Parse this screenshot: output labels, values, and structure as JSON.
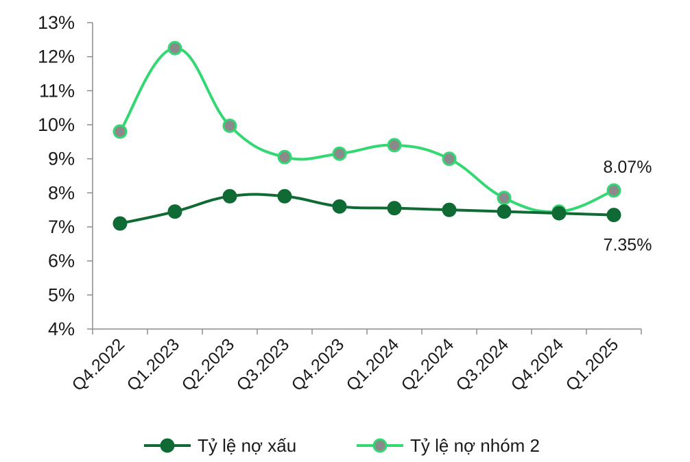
{
  "chart_data": {
    "type": "line",
    "categories": [
      "Q4.2022",
      "Q1.2023",
      "Q2.2023",
      "Q3.2023",
      "Q4.2023",
      "Q1.2024",
      "Q2.2024",
      "Q3.2024",
      "Q4.2024",
      "Q1.2025"
    ],
    "ylim": [
      4,
      13
    ],
    "yticks": [
      "4%",
      "5%",
      "6%",
      "7%",
      "8%",
      "9%",
      "10%",
      "11%",
      "12%",
      "13%"
    ],
    "grid": false,
    "legend_position": "bottom",
    "series": [
      {
        "name": "Tỷ lệ nợ xấu",
        "color": "#0f6b33",
        "marker_color": "#0f6b33",
        "values": [
          7.1,
          7.45,
          7.9,
          7.9,
          7.6,
          7.55,
          7.5,
          7.45,
          7.4,
          7.35
        ]
      },
      {
        "name": "Tỷ lệ nợ nhóm 2",
        "color": "#33d873",
        "marker_color": "#8a8a8a",
        "values": [
          9.8,
          12.25,
          9.97,
          9.05,
          9.15,
          9.4,
          9.0,
          7.85,
          7.45,
          8.07
        ]
      }
    ],
    "annotations": [
      {
        "series": 1,
        "index": 9,
        "text": "8.07%",
        "position": "above"
      },
      {
        "series": 0,
        "index": 9,
        "text": "7.35%",
        "position": "below"
      }
    ]
  }
}
